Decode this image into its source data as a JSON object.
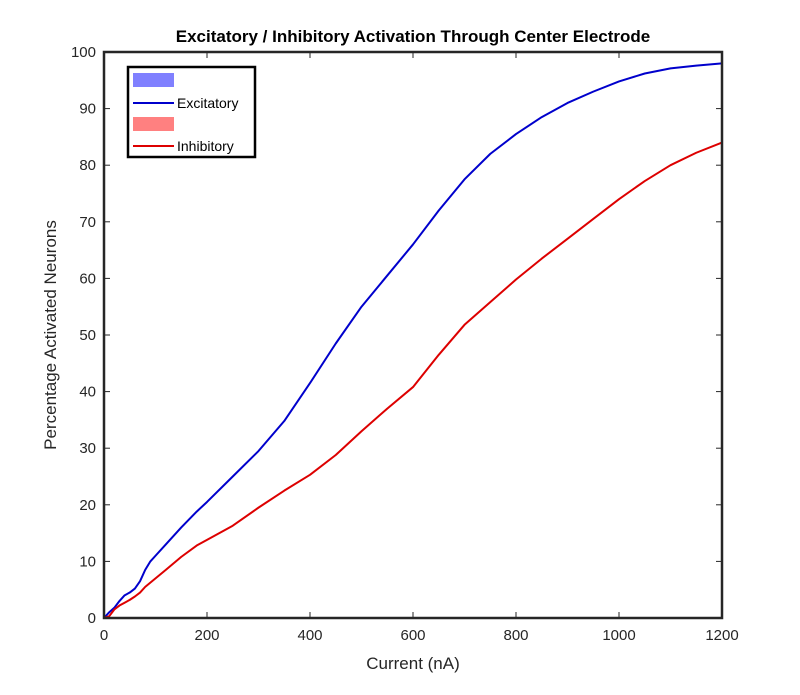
{
  "chart_data": {
    "type": "line",
    "title": "Excitatory / Inhibitory Activation Through Center Electrode",
    "xlabel": "Current (nA)",
    "ylabel": "Percentage Activated Neurons",
    "xlim": [
      0,
      1200
    ],
    "ylim": [
      0,
      100
    ],
    "xticks": [
      0,
      200,
      400,
      600,
      800,
      1000,
      1200
    ],
    "yticks": [
      0,
      10,
      20,
      30,
      40,
      50,
      60,
      70,
      80,
      90,
      100
    ],
    "grid": false,
    "legend_position": "top-left",
    "legend": [
      {
        "kind": "patch",
        "label": "",
        "color": "#8080ff"
      },
      {
        "kind": "line",
        "label": "Excitatory",
        "color": "#0000cc"
      },
      {
        "kind": "patch",
        "label": "",
        "color": "#ff8080"
      },
      {
        "kind": "line",
        "label": "Inhibitory",
        "color": "#dd0000"
      }
    ],
    "series": [
      {
        "name": "Excitatory",
        "color": "#0000cc",
        "x": [
          0,
          10,
          20,
          30,
          40,
          50,
          60,
          70,
          80,
          90,
          100,
          120,
          150,
          180,
          200,
          250,
          300,
          350,
          400,
          450,
          500,
          550,
          600,
          650,
          700,
          750,
          800,
          850,
          900,
          950,
          1000,
          1050,
          1100,
          1150,
          1200
        ],
        "y": [
          0,
          1,
          1.8,
          3,
          4,
          4.5,
          5.2,
          6.5,
          8.5,
          10,
          11,
          13,
          16,
          18.8,
          20.5,
          25,
          29.5,
          34.8,
          41.5,
          48.5,
          55,
          60.5,
          66,
          72,
          77.5,
          82,
          85.5,
          88.5,
          91,
          93,
          94.8,
          96.2,
          97.1,
          97.6,
          98
        ]
      },
      {
        "name": "Inhibitory",
        "color": "#dd0000",
        "x": [
          0,
          10,
          20,
          30,
          40,
          50,
          60,
          70,
          80,
          100,
          120,
          150,
          180,
          200,
          250,
          300,
          350,
          400,
          450,
          500,
          550,
          600,
          650,
          700,
          750,
          800,
          850,
          900,
          950,
          1000,
          1050,
          1100,
          1150,
          1200
        ],
        "y": [
          0,
          0.3,
          1.5,
          2.2,
          2.7,
          3.2,
          3.8,
          4.5,
          5.5,
          7,
          8.5,
          10.8,
          12.8,
          13.8,
          16.3,
          19.5,
          22.5,
          25.3,
          28.8,
          33,
          37,
          40.8,
          46.5,
          51.8,
          55.8,
          59.8,
          63.5,
          67,
          70.5,
          74,
          77.2,
          80,
          82.2,
          84
        ]
      }
    ]
  }
}
